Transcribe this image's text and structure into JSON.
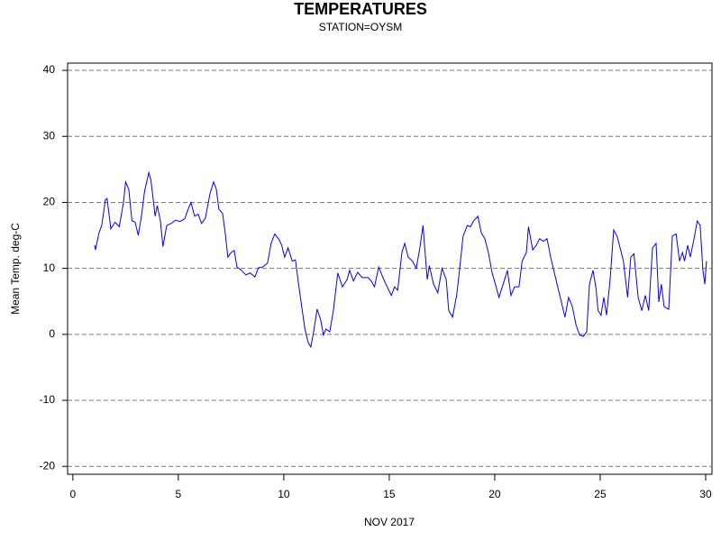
{
  "chart_data": {
    "type": "line",
    "title": "TEMPERATURES",
    "subtitle": "STATION=OYSM",
    "xlabel": "NOV 2017",
    "ylabel": "Mean Temp. deg-C",
    "xlim": [
      -0.25,
      30.3
    ],
    "ylim": [
      -21.2,
      41.1
    ],
    "xticks": [
      0,
      5,
      10,
      15,
      20,
      25,
      30
    ],
    "yticks": [
      -20,
      -10,
      0,
      10,
      20,
      30,
      40
    ],
    "grid": true,
    "series": [
      {
        "name": "Mean Temp. deg-C",
        "color": "#0000ff",
        "x": [
          1.03,
          1.07,
          1.24,
          1.37,
          1.54,
          1.62,
          1.8,
          2.0,
          2.2,
          2.4,
          2.5,
          2.65,
          2.8,
          2.95,
          3.1,
          3.25,
          3.4,
          3.6,
          3.7,
          3.9,
          4.0,
          4.15,
          4.27,
          4.45,
          4.66,
          4.87,
          5.08,
          5.3,
          5.47,
          5.6,
          5.77,
          5.94,
          6.1,
          6.28,
          6.5,
          6.67,
          6.8,
          6.92,
          7.1,
          7.22,
          7.35,
          7.5,
          7.65,
          7.78,
          8.0,
          8.2,
          8.4,
          8.63,
          8.8,
          9.0,
          9.23,
          9.4,
          9.57,
          9.79,
          9.9,
          10.04,
          10.2,
          10.4,
          10.55,
          10.7,
          10.85,
          11.0,
          11.15,
          11.28,
          11.4,
          11.58,
          11.75,
          11.88,
          12.0,
          12.18,
          12.35,
          12.56,
          12.78,
          13.0,
          13.12,
          13.3,
          13.5,
          13.72,
          14.0,
          14.14,
          14.3,
          14.5,
          14.7,
          14.9,
          15.1,
          15.25,
          15.4,
          15.6,
          15.73,
          15.9,
          16.1,
          16.28,
          16.45,
          16.6,
          16.8,
          16.9,
          17.1,
          17.3,
          17.5,
          17.7,
          17.82,
          18.0,
          18.2,
          18.33,
          18.5,
          18.7,
          18.85,
          19.0,
          19.2,
          19.36,
          19.53,
          19.7,
          19.87,
          20.04,
          20.2,
          20.4,
          20.6,
          20.77,
          20.94,
          21.15,
          21.3,
          21.5,
          21.6,
          21.8,
          21.97,
          22.13,
          22.3,
          22.48,
          22.65,
          22.8,
          23.0,
          23.16,
          23.33,
          23.5,
          23.68,
          23.85,
          24.02,
          24.2,
          24.36,
          24.49,
          24.66,
          24.8,
          24.9,
          25.04,
          25.17,
          25.3,
          25.47,
          25.64,
          25.8,
          26.0,
          26.1,
          26.3,
          26.45,
          26.6,
          26.8,
          26.97,
          27.14,
          27.3,
          27.48,
          27.65,
          27.78,
          27.9,
          28.03,
          28.25,
          28.42,
          28.6,
          28.76,
          28.9,
          29.0,
          29.15,
          29.27,
          29.45,
          29.6,
          29.74,
          29.87,
          29.96,
          30.04
        ],
        "values": [
          13.5,
          12.8,
          15.4,
          16.5,
          20.4,
          20.6,
          16,
          17,
          16.3,
          20,
          23.1,
          22,
          17.2,
          17,
          15,
          17.9,
          21.7,
          24.5,
          23.4,
          17.9,
          19.5,
          17.2,
          13.3,
          16.5,
          16.8,
          17.3,
          17.1,
          17.5,
          19,
          20,
          17.9,
          18.2,
          16.8,
          17.6,
          21.3,
          23.1,
          22,
          19,
          18.3,
          15.4,
          11.7,
          12.4,
          12.7,
          10.2,
          9.7,
          9.0,
          9.3,
          8.7,
          10.1,
          10.2,
          10.8,
          13.8,
          15.2,
          14.3,
          13.5,
          11.7,
          13.1,
          11.1,
          11.3,
          7.6,
          4.2,
          0.8,
          -1.2,
          -1.9,
          0.1,
          3.8,
          2.2,
          -0.1,
          0.8,
          0.4,
          3.6,
          9.3,
          7.2,
          8.3,
          9.7,
          8.1,
          9.4,
          8.6,
          8.6,
          8.1,
          7.2,
          10.2,
          8.6,
          7.2,
          5.9,
          7.2,
          6.7,
          12.4,
          13.8,
          11.7,
          11.1,
          10.0,
          13.1,
          16.5,
          8.3,
          10.4,
          7.6,
          6.3,
          10.0,
          8.3,
          3.6,
          2.6,
          6.0,
          9.7,
          14.9,
          16.5,
          16.3,
          17.2,
          17.9,
          15.4,
          14.5,
          12.4,
          9.4,
          7.5,
          5.6,
          7.6,
          9.7,
          5.9,
          7.2,
          7.2,
          11.1,
          12.4,
          16.3,
          12.8,
          13.5,
          14.5,
          14.1,
          14.5,
          11.7,
          9.7,
          7.0,
          4.9,
          2.6,
          5.6,
          4.2,
          1.5,
          -0.1,
          -0.3,
          0.4,
          7.6,
          9.7,
          7.0,
          3.6,
          2.9,
          5.6,
          2.9,
          8.3,
          15.8,
          14.9,
          12.4,
          11.1,
          5.6,
          11.7,
          12.2,
          5.6,
          3.6,
          5.9,
          3.6,
          13.1,
          13.8,
          4.9,
          7.6,
          4.2,
          3.8,
          14.9,
          15.2,
          11.1,
          12.4,
          11.1,
          13.5,
          11.7,
          14.5,
          17.2,
          16.5,
          9.7,
          7.6,
          11.1
        ]
      }
    ]
  }
}
